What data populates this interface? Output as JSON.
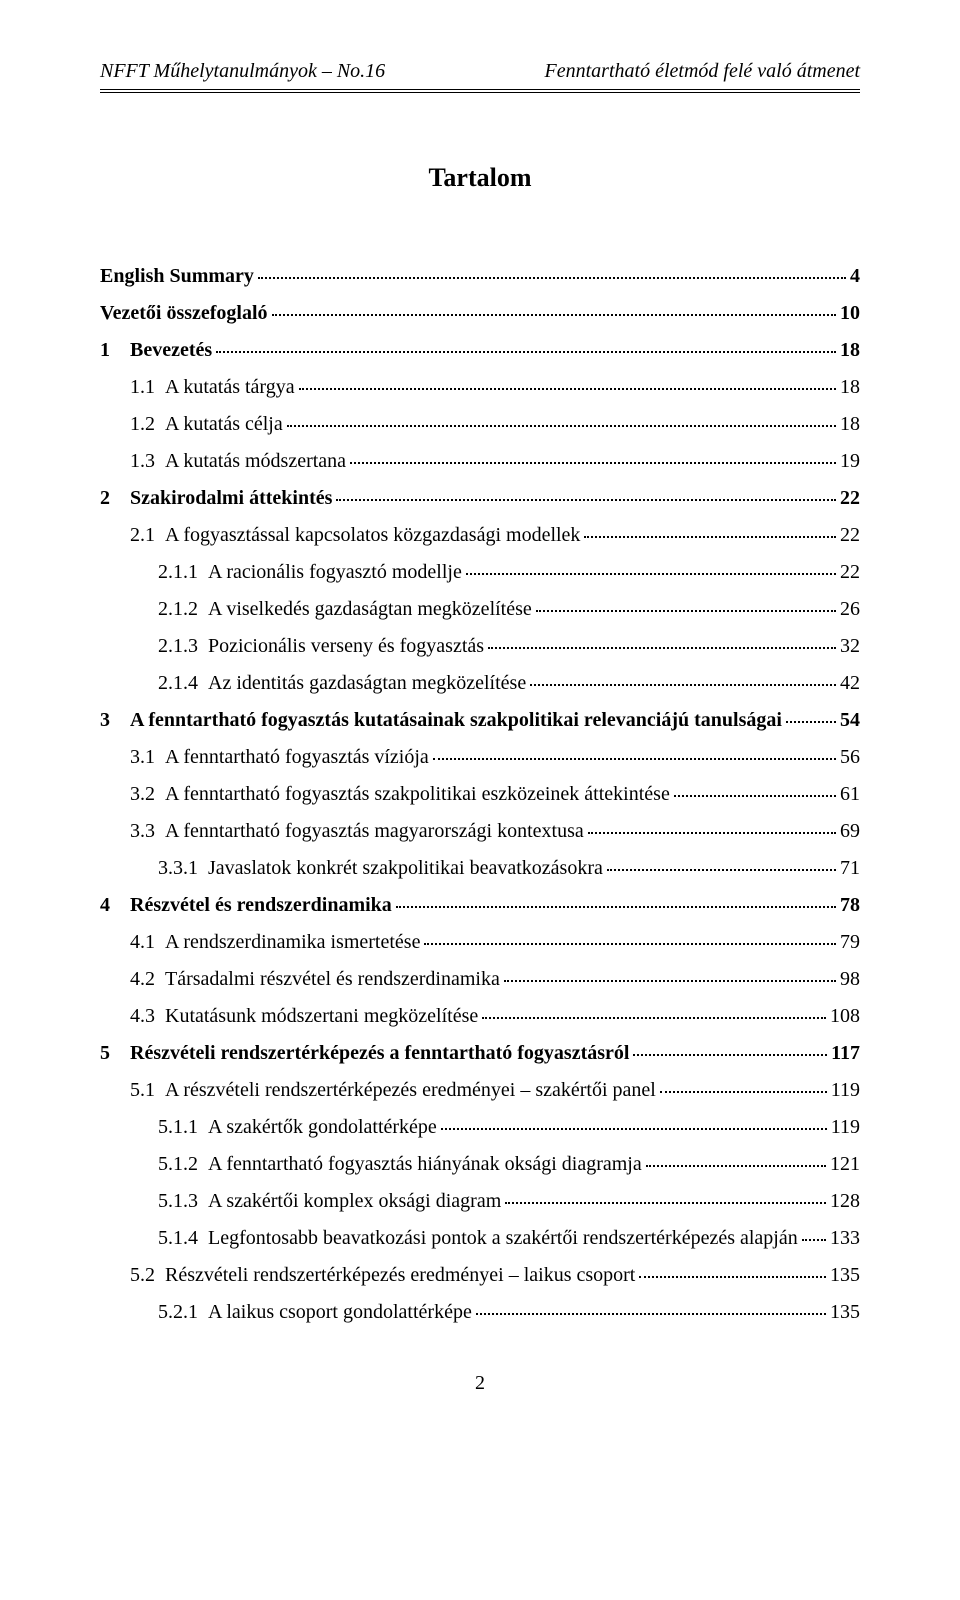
{
  "header": {
    "left": "NFFT Műhelytanulmányok – No.16",
    "right": "Fenntartható életmód felé való átmenet"
  },
  "toc_title": "Tartalom",
  "page_number": "2",
  "entries": [
    {
      "level": 0,
      "bold": true,
      "num": "",
      "title": "English Summary",
      "page": "4"
    },
    {
      "level": 0,
      "bold": true,
      "num": "",
      "title": "Vezetői összefoglaló",
      "page": "10"
    },
    {
      "level": 0,
      "bold": true,
      "num": "1",
      "title": "Bevezetés",
      "page": "18"
    },
    {
      "level": 1,
      "bold": false,
      "num": "1.1",
      "title": "A kutatás tárgya",
      "page": "18"
    },
    {
      "level": 1,
      "bold": false,
      "num": "1.2",
      "title": "A kutatás célja",
      "page": "18"
    },
    {
      "level": 1,
      "bold": false,
      "num": "1.3",
      "title": "A kutatás módszertana",
      "page": "19"
    },
    {
      "level": 0,
      "bold": true,
      "num": "2",
      "title": "Szakirodalmi áttekintés",
      "page": "22"
    },
    {
      "level": 1,
      "bold": false,
      "num": "2.1",
      "title": "A fogyasztással kapcsolatos közgazdasági modellek",
      "page": "22"
    },
    {
      "level": 2,
      "bold": false,
      "num": "2.1.1",
      "title": "A racionális fogyasztó modellje",
      "page": "22"
    },
    {
      "level": 2,
      "bold": false,
      "num": "2.1.2",
      "title": "A viselkedés gazdaságtan megközelítése",
      "page": "26"
    },
    {
      "level": 2,
      "bold": false,
      "num": "2.1.3",
      "title": "Pozicionális verseny és fogyasztás",
      "page": "32"
    },
    {
      "level": 2,
      "bold": false,
      "num": "2.1.4",
      "title": "Az identitás gazdaságtan megközelítése",
      "page": "42"
    },
    {
      "level": 0,
      "bold": true,
      "num": "3",
      "title": "A fenntartható fogyasztás kutatásainak szakpolitikai relevanciájú tanulságai",
      "page": "54"
    },
    {
      "level": 1,
      "bold": false,
      "num": "3.1",
      "title": "A fenntartható fogyasztás víziója",
      "page": "56"
    },
    {
      "level": 1,
      "bold": false,
      "num": "3.2",
      "title": "A fenntartható fogyasztás szakpolitikai eszközeinek áttekintése",
      "page": "61"
    },
    {
      "level": 1,
      "bold": false,
      "num": "3.3",
      "title": "A fenntartható fogyasztás magyarországi kontextusa",
      "page": "69"
    },
    {
      "level": 2,
      "bold": false,
      "num": "3.3.1",
      "title": "Javaslatok konkrét szakpolitikai beavatkozásokra",
      "page": "71"
    },
    {
      "level": 0,
      "bold": true,
      "num": "4",
      "title": "Részvétel és rendszerdinamika",
      "page": "78"
    },
    {
      "level": 1,
      "bold": false,
      "num": "4.1",
      "title": "A rendszerdinamika ismertetése",
      "page": "79"
    },
    {
      "level": 1,
      "bold": false,
      "num": "4.2",
      "title": "Társadalmi részvétel és rendszerdinamika",
      "page": "98"
    },
    {
      "level": 1,
      "bold": false,
      "num": "4.3",
      "title": "Kutatásunk módszertani megközelítése",
      "page": "108"
    },
    {
      "level": 0,
      "bold": true,
      "num": "5",
      "title": "Részvételi rendszertérképezés a fenntartható fogyasztásról",
      "page": "117"
    },
    {
      "level": 1,
      "bold": false,
      "num": "5.1",
      "title": "A részvételi rendszertérképezés eredményei – szakértői panel",
      "page": "119"
    },
    {
      "level": 2,
      "bold": false,
      "num": "5.1.1",
      "title": "A szakértők gondolattérképe",
      "page": "119"
    },
    {
      "level": 2,
      "bold": false,
      "num": "5.1.2",
      "title": "A fenntartható fogyasztás hiányának oksági diagramja",
      "page": "121"
    },
    {
      "level": 2,
      "bold": false,
      "num": "5.1.3",
      "title": "A szakértői komplex oksági diagram",
      "page": "128"
    },
    {
      "level": 2,
      "bold": false,
      "num": "5.1.4",
      "title": "Legfontosabb beavatkozási pontok a szakértői rendszertérképezés alapján",
      "page": "133"
    },
    {
      "level": 1,
      "bold": false,
      "num": "5.2",
      "title": "Részvételi rendszertérképezés eredményei – laikus csoport",
      "page": "135"
    },
    {
      "level": 2,
      "bold": false,
      "num": "5.2.1",
      "title": "A laikus csoport gondolattérképe",
      "page": "135"
    }
  ]
}
